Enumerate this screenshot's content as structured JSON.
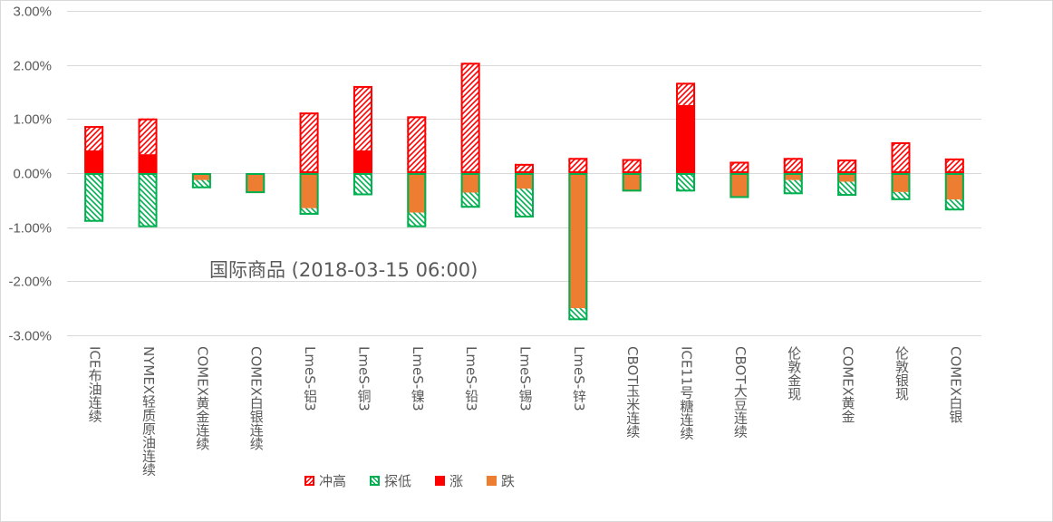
{
  "chart_data": {
    "type": "bar",
    "stacked": true,
    "annotation": "国际商品 (2018-03-15 06:00)",
    "categories": [
      "ICE布油连续",
      "NYMEX轻质原油连续",
      "COMEX黄金连续",
      "COMEX白银连续",
      "LmeS-铝3",
      "LmeS-铜3",
      "LmeS-镍3",
      "LmeS-铅3",
      "LmeS-锡3",
      "LmeS-锌3",
      "CBOT玉米连续",
      "ICE11号糖连续",
      "CBOT大豆连续",
      "伦敦金现",
      "COMEX黄金",
      "伦敦银现",
      "COMEX白银"
    ],
    "series": [
      {
        "name": "涨",
        "key": "rise",
        "values": [
          0.42,
          0.35,
          0,
          0,
          0,
          0.42,
          0,
          0,
          0,
          0,
          0,
          1.26,
          0,
          0,
          0,
          0,
          0
        ]
      },
      {
        "name": "冲高",
        "key": "high",
        "values": [
          0.45,
          0.66,
          0,
          0,
          1.12,
          1.19,
          1.05,
          2.04,
          0.17,
          0.28,
          0.26,
          0.41,
          0.21,
          0.28,
          0.25,
          0.57,
          0.27
        ]
      },
      {
        "name": "跌",
        "key": "fall",
        "values": [
          0,
          0,
          -0.13,
          -0.37,
          -0.65,
          0,
          -0.73,
          -0.36,
          -0.29,
          -2.5,
          -0.34,
          0,
          -0.46,
          -0.13,
          -0.16,
          -0.35,
          -0.49
        ]
      },
      {
        "name": "探低",
        "key": "low",
        "values": [
          -0.9,
          -1.0,
          -0.15,
          0,
          -0.12,
          -0.41,
          -0.27,
          -0.28,
          -0.53,
          -0.22,
          0,
          -0.34,
          0,
          -0.26,
          -0.26,
          -0.15,
          -0.2
        ]
      }
    ],
    "legend": [
      {
        "name": "冲高",
        "key": "high"
      },
      {
        "name": "探低",
        "key": "low"
      },
      {
        "name": "涨",
        "key": "rise"
      },
      {
        "name": "跌",
        "key": "fall"
      }
    ],
    "ylim": [
      -3,
      3
    ],
    "yticks": [
      3,
      2,
      1,
      0,
      -1,
      -2,
      -3
    ],
    "ytick_labels": [
      "3.00%",
      "2.00%",
      "1.00%",
      "0.00%",
      "-1.00%",
      "-2.00%",
      "-3.00%"
    ],
    "grid": true,
    "legend_position": "bottom",
    "colors": {
      "high": "#ff0000",
      "low": "#00b050",
      "rise": "#ff0000",
      "fall": "#ed7d31",
      "grid": "#d9d9d9",
      "text": "#595959"
    }
  }
}
